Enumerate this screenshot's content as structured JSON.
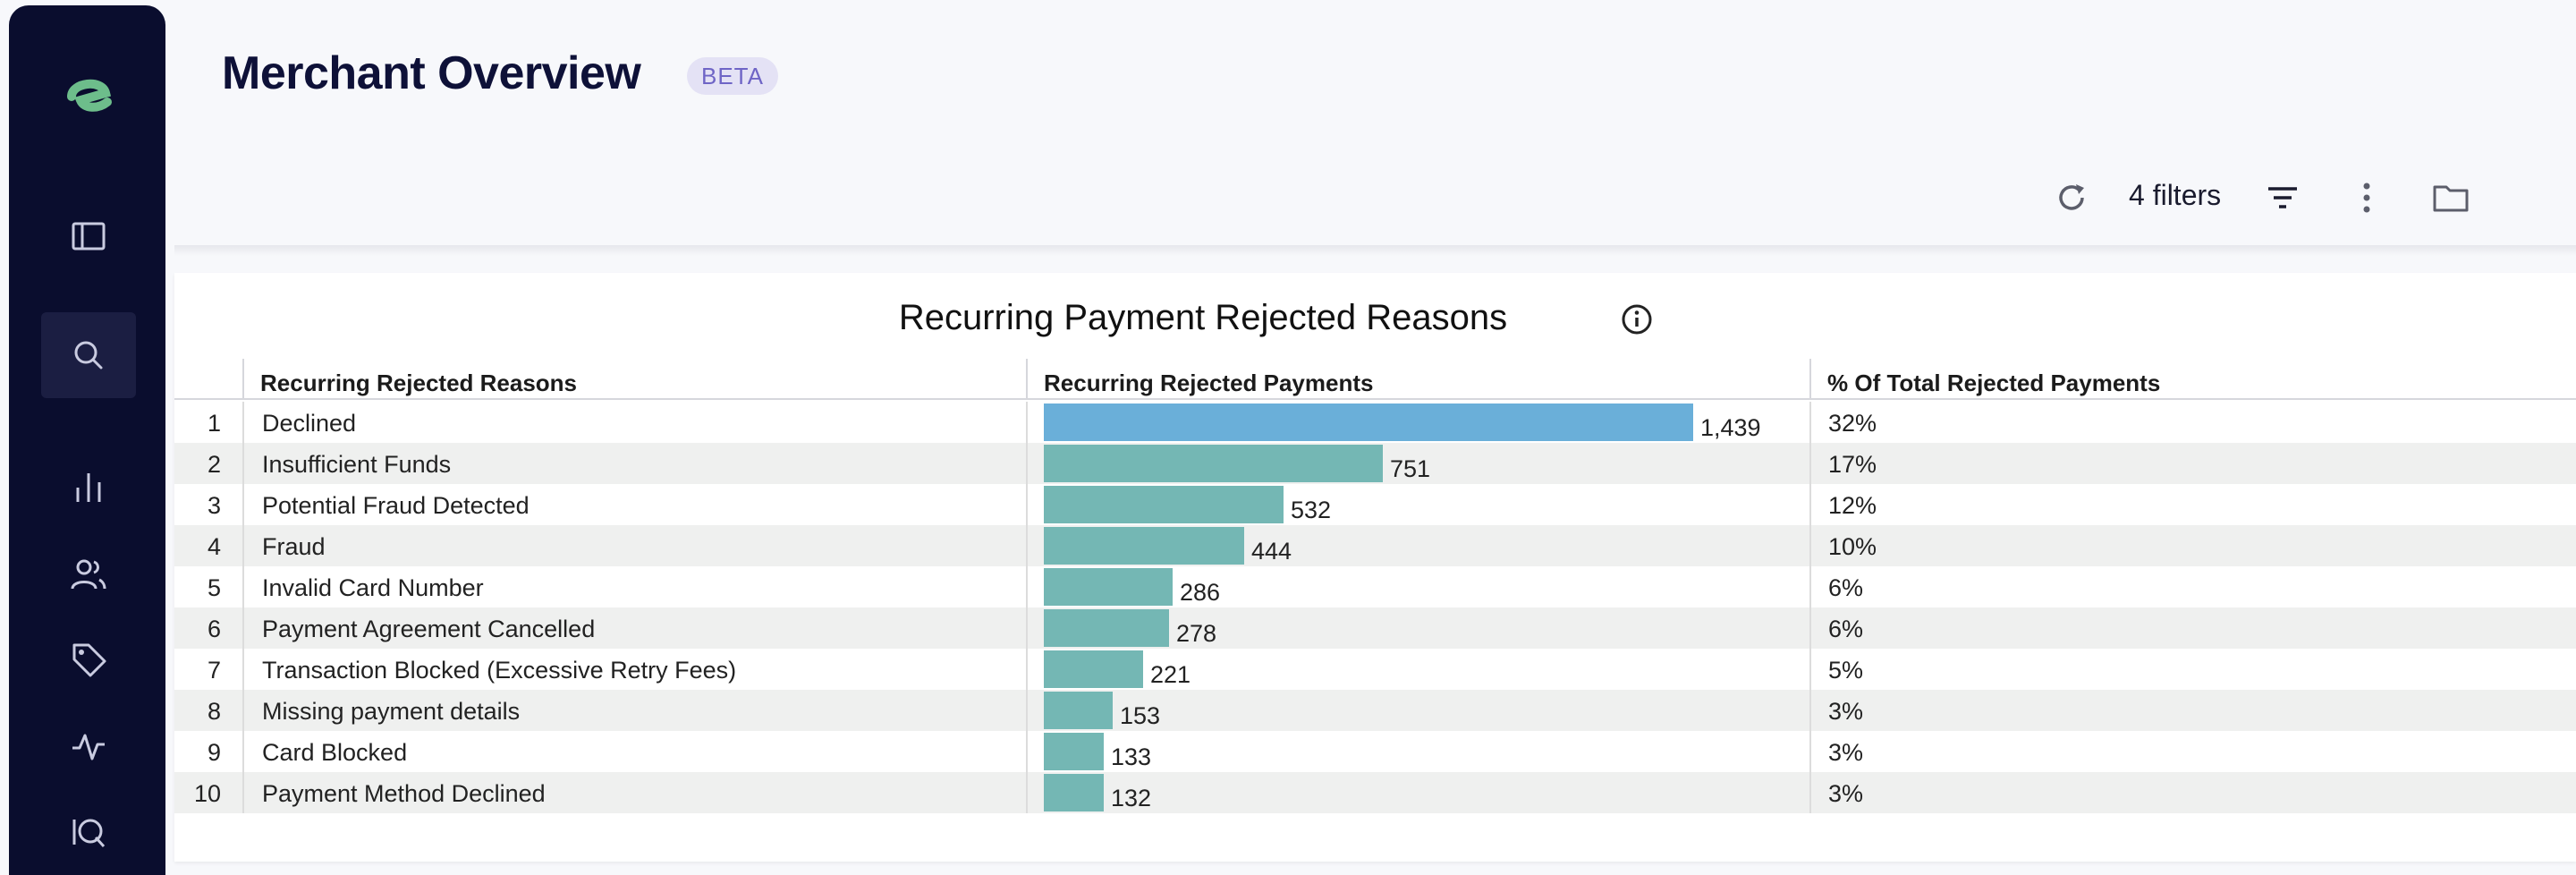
{
  "page": {
    "title": "Merchant Overview",
    "badge": "BETA"
  },
  "toolbar": {
    "filters_label": "4 filters",
    "icons": [
      "refresh-icon",
      "filter-icon",
      "more-vert-icon",
      "folder-icon"
    ]
  },
  "sidebar": {
    "items": [
      {
        "name": "logo",
        "icon": "logo-icon"
      },
      {
        "name": "panel",
        "icon": "panel-icon"
      },
      {
        "name": "search",
        "icon": "search-icon",
        "active": true
      },
      {
        "name": "analytics",
        "icon": "bar-chart-icon"
      },
      {
        "name": "users",
        "icon": "users-icon"
      },
      {
        "name": "tags",
        "icon": "tag-icon"
      },
      {
        "name": "activity",
        "icon": "pulse-icon"
      },
      {
        "name": "iq",
        "icon": "iq-icon"
      }
    ]
  },
  "colors": {
    "sidebar_bg": "#0a0d2e",
    "accent_green": "#6dbd8b",
    "bar_top": "#6aafd9",
    "bar_teal": "#74b7b4",
    "badge_bg": "#e4e2f5",
    "badge_text": "#6f65c6"
  },
  "chart": {
    "title": "Recurring Payment Rejected Reasons",
    "columns": [
      "Recurring Rejected Reasons",
      "Recurring Rejected Payments",
      "% Of Total Rejected Payments"
    ]
  },
  "chart_data": {
    "type": "table",
    "title": "Recurring Payment Rejected Reasons",
    "columns": [
      "Recurring Rejected Reasons",
      "Recurring Rejected Payments",
      "% Of Total Rejected Payments"
    ],
    "rows": [
      {
        "n": "1",
        "reason": "Declined",
        "value": 1439,
        "label": "1,439",
        "pct": "32%"
      },
      {
        "n": "2",
        "reason": "Insufficient Funds",
        "value": 751,
        "label": "751",
        "pct": "17%"
      },
      {
        "n": "3",
        "reason": "Potential Fraud Detected",
        "value": 532,
        "label": "532",
        "pct": "12%"
      },
      {
        "n": "4",
        "reason": "Fraud",
        "value": 444,
        "label": "444",
        "pct": "10%"
      },
      {
        "n": "5",
        "reason": "Invalid Card Number",
        "value": 286,
        "label": "286",
        "pct": "6%"
      },
      {
        "n": "6",
        "reason": "Payment Agreement Cancelled",
        "value": 278,
        "label": "278",
        "pct": "6%"
      },
      {
        "n": "7",
        "reason": "Transaction Blocked (Excessive Retry Fees)",
        "value": 221,
        "label": "221",
        "pct": "5%"
      },
      {
        "n": "8",
        "reason": "Missing payment details",
        "value": 153,
        "label": "153",
        "pct": "3%"
      },
      {
        "n": "9",
        "reason": "Card Blocked",
        "value": 133,
        "label": "133",
        "pct": "3%"
      },
      {
        "n": "10",
        "reason": "Payment Method Declined",
        "value": 132,
        "label": "132",
        "pct": "3%"
      }
    ]
  }
}
